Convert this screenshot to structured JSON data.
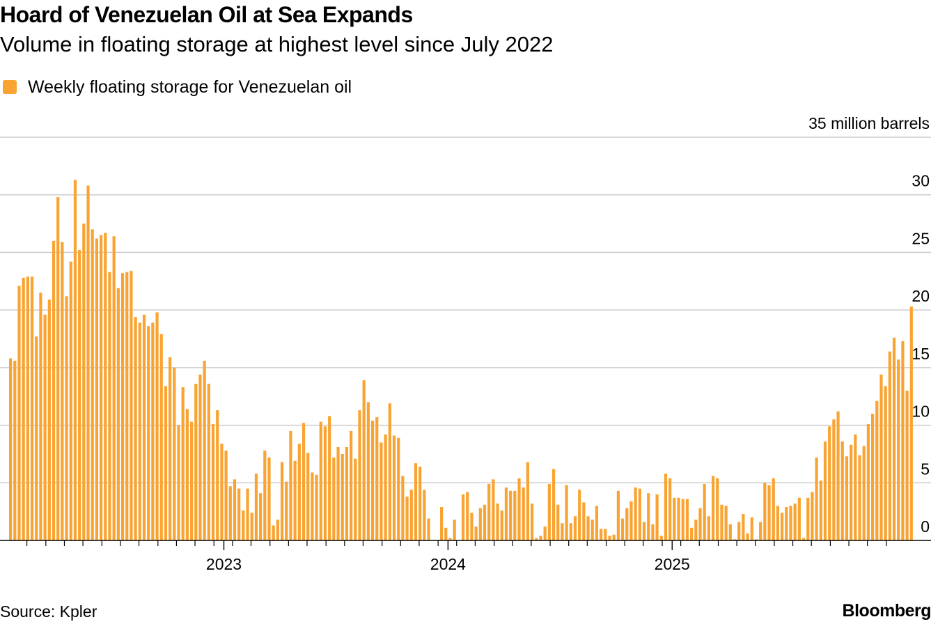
{
  "title": "Hoard of Venezuelan Oil at Sea Expands",
  "subtitle": "Volume in floating storage at highest level since July 2022",
  "source": "Source: Kpler",
  "brand": "Bloomberg",
  "colors": {
    "bar": "#f9a432",
    "grid": "#cccccc",
    "axis": "#000000",
    "text": "#000000"
  },
  "chart_data": {
    "type": "bar",
    "title": "Hoard of Venezuelan Oil at Sea Expands",
    "subtitle": "Volume in floating storage at highest level since July 2022",
    "legend": [
      {
        "name": "Weekly floating storage for Venezuelan oil",
        "color": "#f9a432"
      }
    ],
    "legend_position": "top-left",
    "ylabel": "35 million barrels",
    "ylim": [
      0,
      35
    ],
    "yticks": [
      {
        "value": 35,
        "label": "35 million barrels"
      },
      {
        "value": 30,
        "label": "30"
      },
      {
        "value": 25,
        "label": "25"
      },
      {
        "value": 20,
        "label": "20"
      },
      {
        "value": 15,
        "label": "15"
      },
      {
        "value": 10,
        "label": "10"
      },
      {
        "value": 5,
        "label": "5"
      },
      {
        "value": 0,
        "label": "0"
      }
    ],
    "x_start_week": 0,
    "year_ticks": [
      {
        "label": "2023",
        "week": 50
      },
      {
        "label": "2024",
        "week": 102
      },
      {
        "label": "2025",
        "week": 154
      }
    ],
    "month_tick_weeks": [
      4.3,
      8.7,
      13,
      17.3,
      21.7,
      26,
      30.3,
      34.7,
      39,
      43.3,
      47.7,
      52,
      56.3,
      60.7,
      65,
      69.3,
      73.7,
      78,
      82.3,
      86.7,
      91,
      95.3,
      99.7,
      104,
      108.3,
      112.7,
      117,
      121.3,
      125.7,
      130,
      134.3,
      138.7,
      143,
      147.3,
      151.7,
      156,
      160.3,
      164.7,
      169,
      173.3,
      177.7,
      182,
      186.3,
      190.7,
      195,
      199.3,
      203.7
    ],
    "series": [
      {
        "name": "Weekly floating storage for Venezuelan oil",
        "values": [
          15.8,
          15.6,
          22.1,
          22.8,
          22.9,
          22.9,
          17.7,
          21.5,
          19.6,
          20.9,
          26.0,
          29.8,
          25.9,
          21.2,
          24.2,
          31.3,
          25.2,
          27.5,
          30.8,
          27.0,
          26.2,
          26.5,
          26.7,
          23.3,
          26.4,
          21.9,
          23.2,
          23.3,
          23.4,
          19.4,
          18.9,
          19.6,
          18.6,
          18.9,
          19.8,
          17.9,
          13.4,
          15.9,
          15.0,
          10.0,
          13.3,
          11.4,
          10.3,
          13.6,
          14.4,
          15.6,
          13.6,
          10.1,
          11.3,
          8.4,
          7.8,
          4.7,
          5.3,
          4.5,
          2.6,
          4.5,
          2.4,
          5.8,
          4.1,
          7.8,
          7.2,
          1.3,
          1.8,
          6.8,
          5.1,
          9.5,
          6.9,
          8.4,
          10.2,
          7.6,
          5.9,
          5.7,
          10.3,
          9.9,
          10.8,
          7.2,
          8.1,
          7.5,
          8.1,
          9.5,
          7.1,
          11.3,
          13.9,
          12.0,
          10.4,
          10.7,
          8.5,
          9.2,
          11.9,
          9.1,
          8.9,
          5.6,
          3.8,
          4.4,
          6.7,
          6.4,
          4.4,
          1.9,
          0,
          0,
          2.9,
          1.1,
          0.2,
          1.8,
          0,
          4.0,
          4.2,
          2.4,
          1.2,
          2.8,
          3.1,
          4.9,
          5.3,
          3.2,
          2.6,
          4.6,
          4.3,
          4.3,
          5.4,
          4.6,
          6.8,
          3.2,
          0.2,
          0.4,
          1.2,
          4.9,
          6.2,
          3.1,
          1.5,
          4.8,
          1.5,
          2.1,
          4.4,
          3.3,
          2.1,
          1.8,
          3.0,
          1.0,
          1.0,
          0.4,
          0.5,
          4.3,
          1.9,
          2.8,
          3.4,
          4.6,
          4.5,
          1.6,
          4.1,
          1.4,
          4.0,
          0.4,
          5.8,
          5.4,
          3.7,
          3.7,
          3.6,
          3.6,
          1.1,
          1.8,
          2.8,
          4.9,
          2.1,
          5.6,
          5.4,
          3.1,
          3.0,
          1.4,
          0.1,
          1.6,
          2.3,
          0.6,
          2.0,
          0.1,
          1.6,
          5.0,
          4.8,
          5.4,
          3.0,
          2.4,
          2.9,
          3.0,
          3.2,
          3.7,
          0.2,
          3.7,
          4.2,
          7.2,
          5.2,
          8.6,
          9.9,
          10.5,
          11.2,
          8.6,
          7.3,
          8.3,
          9.2,
          7.4,
          8.2,
          10.1,
          11.0,
          12.1,
          14.4,
          13.4,
          16.4,
          17.6,
          15.7,
          17.3,
          13.0,
          20.3
        ]
      }
    ]
  }
}
